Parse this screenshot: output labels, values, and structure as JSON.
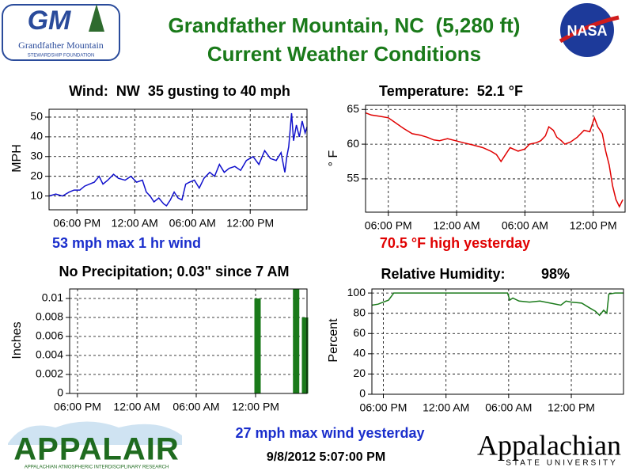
{
  "header": {
    "title": "Grandfather Mountain, NC  (5,280 ft)",
    "subtitle": "Current Weather Conditions"
  },
  "logos": {
    "gm_mark": "GM",
    "gm_name": "Grandfather Mountain",
    "gm_sub": "STEWARDSHIP FOUNDATION",
    "nasa": "NASA",
    "appalair": "APPALAIR",
    "appalair_sub": "APPALACHIAN ATMOSPHERIC INTERDISCIPLINARY RESEARCH",
    "asu": "Appalachian",
    "asu_sub": "STATE UNIVERSITY"
  },
  "footer": {
    "note": "27 mph max wind yesterday",
    "timestamp": "9/8/2012 5:07:00 PM"
  },
  "chart_data": [
    {
      "type": "line",
      "title": "Wind:  NW  35 gusting to 40 mph",
      "ylabel": "MPH",
      "annotation": "53 mph max 1 hr wind",
      "color": "#1010cc",
      "annotation_color": "#1a2ecc",
      "grid": true,
      "x": [
        -2.9,
        -2.2,
        -1.5,
        -0.8,
        -0.3,
        0.3,
        0.8,
        1.3,
        1.8,
        2.3,
        2.7,
        3.2,
        3.8,
        4.3,
        5.0,
        5.6,
        6.2,
        6.8,
        7.2,
        7.6,
        8.0,
        8.5,
        9.0,
        9.3,
        9.7,
        10.1,
        10.5,
        10.9,
        11.3,
        11.7,
        12.2,
        12.7,
        13.2,
        13.8,
        14.3,
        14.8,
        15.3,
        15.8,
        16.4,
        17.0,
        17.6,
        18.3,
        18.9,
        19.5,
        20.1,
        20.7,
        21.2,
        21.6,
        21.8,
        22.0,
        22.3,
        22.5,
        22.8,
        23.1,
        23.4,
        23.7,
        23.9
      ],
      "values": [
        10,
        11,
        10,
        12,
        13,
        13,
        15,
        16,
        17,
        20,
        16,
        18,
        21,
        19,
        18,
        20,
        17,
        18,
        12,
        10,
        7,
        9,
        6,
        5,
        8,
        12,
        9,
        8,
        16,
        17,
        18,
        14,
        19,
        22,
        20,
        26,
        22,
        24,
        25,
        23,
        28,
        30,
        26,
        33,
        29,
        28,
        32,
        22,
        30,
        35,
        52,
        38,
        46,
        40,
        48,
        42,
        45
      ],
      "xlim": [
        -2.9,
        23.9
      ],
      "ylim": [
        3,
        54
      ],
      "yticks": [
        10,
        20,
        30,
        40,
        50
      ],
      "xticks": [
        {
          "value": 0,
          "label": "06:00 PM"
        },
        {
          "value": 6,
          "label": "12:00 AM"
        },
        {
          "value": 12,
          "label": "06:00 AM"
        },
        {
          "value": 18,
          "label": "12:00 PM"
        }
      ]
    },
    {
      "type": "line",
      "title": "Temperature:  52.1 °F",
      "ylabel": "° F",
      "annotation": "70.5 °F high yesterday",
      "color": "#e00000",
      "annotation_color": "#e00000",
      "grid": true,
      "x": [
        -2,
        -1.5,
        -0.7,
        0,
        0.7,
        1.4,
        2.1,
        2.8,
        3.4,
        4.0,
        4.5,
        5.2,
        5.9,
        6.6,
        7.4,
        8.3,
        9.0,
        9.5,
        9.9,
        10.3,
        10.7,
        11.4,
        12.0,
        12.4,
        13.0,
        13.4,
        13.8,
        14.1,
        14.5,
        14.8,
        15.2,
        15.5,
        16.0,
        16.6,
        17.2,
        17.7,
        18.1,
        18.4,
        18.8,
        19.1,
        19.4,
        19.7,
        20.0,
        20.3,
        20.6
      ],
      "values": [
        64.5,
        64.2,
        64,
        63.8,
        63,
        62.2,
        61.5,
        61.3,
        61,
        60.6,
        60.5,
        60.8,
        60.5,
        60.2,
        59.9,
        59.5,
        59,
        58.5,
        57.5,
        58.5,
        59.5,
        59,
        59.3,
        60,
        60.2,
        60.5,
        61.2,
        62.5,
        62,
        61,
        60.5,
        60,
        60.3,
        61,
        62,
        61.8,
        63.8,
        62.5,
        61.5,
        59,
        57,
        54,
        52,
        51,
        52
      ],
      "xlim": [
        -2,
        20.8
      ],
      "ylim": [
        50.2,
        65.6
      ],
      "yticks": [
        55,
        60,
        65
      ],
      "xticks": [
        {
          "value": 0,
          "label": "06:00 PM"
        },
        {
          "value": 6,
          "label": "12:00 AM"
        },
        {
          "value": 12,
          "label": "06:00 AM"
        },
        {
          "value": 18,
          "label": "12:00 PM"
        }
      ]
    },
    {
      "type": "bar",
      "title": "No Precipitation; 0.03\" since 7 AM",
      "ylabel": "Inches",
      "color": "#1a7a1a",
      "grid": true,
      "x": [
        18.2,
        22.1,
        23.0
      ],
      "values": [
        0.01,
        0.011,
        0.008
      ],
      "xlim": [
        -0.8,
        23.2
      ],
      "ylim": [
        0,
        0.011
      ],
      "yticks": [
        0,
        0.002,
        0.004,
        0.006,
        0.008,
        0.01
      ],
      "xticks": [
        {
          "value": 0,
          "label": "06:00 PM"
        },
        {
          "value": 6,
          "label": "12:00 AM"
        },
        {
          "value": 12,
          "label": "06:00 AM"
        },
        {
          "value": 18,
          "label": "12:00 PM"
        }
      ]
    },
    {
      "type": "line",
      "title": "Relative Humidity:",
      "current": "98%",
      "ylabel": "Percent",
      "color": "#1a7a1a",
      "grid": true,
      "x": [
        -1.1,
        -0.5,
        0,
        0.5,
        1.0,
        2,
        4,
        6,
        8,
        10,
        11.9,
        12.1,
        12.4,
        13,
        14,
        15,
        16,
        17,
        17.5,
        18,
        19,
        19.8,
        20.3,
        20.7,
        21.1,
        21.4,
        21.6,
        22.2,
        23.0
      ],
      "values": [
        88,
        89,
        91,
        93,
        100,
        100,
        100,
        100,
        100,
        100,
        100,
        93,
        95,
        92,
        91,
        92,
        90,
        88,
        92,
        91,
        90,
        85,
        82,
        78,
        83,
        80,
        99,
        100,
        100
      ],
      "xlim": [
        -1.1,
        23.0
      ],
      "ylim": [
        0,
        104
      ],
      "yticks": [
        0,
        20,
        40,
        60,
        80,
        100
      ],
      "xticks": [
        {
          "value": 0,
          "label": "06:00 PM"
        },
        {
          "value": 6,
          "label": "12:00 AM"
        },
        {
          "value": 12,
          "label": "06:00 AM"
        },
        {
          "value": 18,
          "label": "12:00 PM"
        }
      ]
    }
  ]
}
